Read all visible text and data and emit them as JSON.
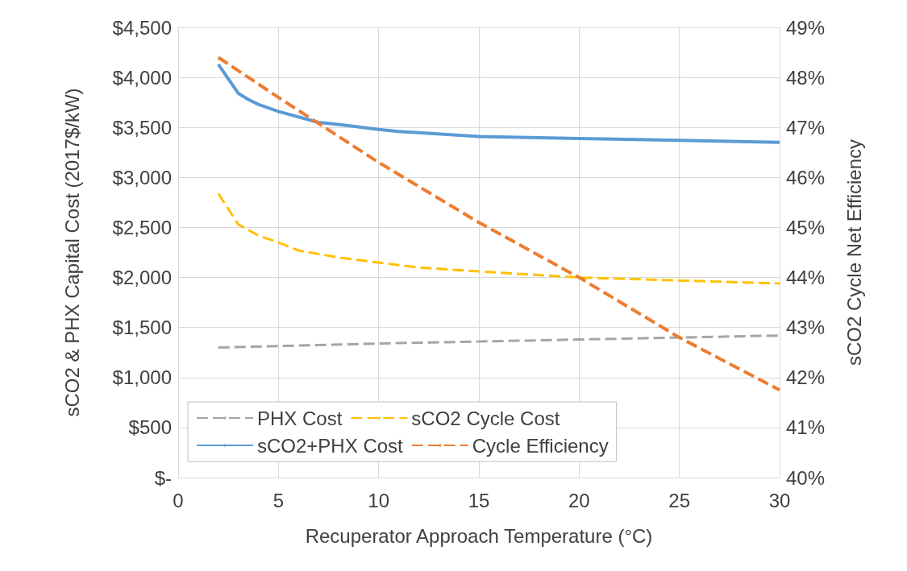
{
  "chart_data": {
    "type": "line",
    "xlabel": "Recuperator Approach Temperature (°C)",
    "ylabel": "sCO2 & PHX Capital Cost (2017$/kW)",
    "y2label": "sCO2 Cycle Net Efficiency",
    "xlim": [
      0,
      30
    ],
    "xticks": [
      0,
      5,
      10,
      15,
      20,
      25,
      30
    ],
    "ylim": [
      0,
      4500
    ],
    "yticks": [
      {
        "value": 0,
        "label": "$-"
      },
      {
        "value": 500,
        "label": "$500"
      },
      {
        "value": 1000,
        "label": "$1,000"
      },
      {
        "value": 1500,
        "label": "$1,500"
      },
      {
        "value": 2000,
        "label": "$2,000"
      },
      {
        "value": 2500,
        "label": "$2,500"
      },
      {
        "value": 3000,
        "label": "$3,000"
      },
      {
        "value": 3500,
        "label": "$3,500"
      },
      {
        "value": 4000,
        "label": "$4,000"
      },
      {
        "value": 4500,
        "label": "$4,500"
      }
    ],
    "y2lim": [
      40,
      49
    ],
    "y2ticks": [
      {
        "value": 40,
        "label": "40%"
      },
      {
        "value": 41,
        "label": "41%"
      },
      {
        "value": 42,
        "label": "42%"
      },
      {
        "value": 43,
        "label": "43%"
      },
      {
        "value": 44,
        "label": "44%"
      },
      {
        "value": 45,
        "label": "45%"
      },
      {
        "value": 46,
        "label": "46%"
      },
      {
        "value": 47,
        "label": "47%"
      },
      {
        "value": 48,
        "label": "48%"
      },
      {
        "value": 49,
        "label": "49%"
      }
    ],
    "grid": true,
    "legend": "bottom left",
    "marker": "none",
    "series": [
      {
        "name": "PHX Cost",
        "color": "#a5a5a5",
        "line_style": "dashed",
        "x": [
          2,
          10,
          20,
          30
        ],
        "values": [
          1300,
          1340,
          1380,
          1420
        ]
      },
      {
        "name": "sCO2 Cycle Cost",
        "color": "#ffc000",
        "line_style": "dashed",
        "x": [
          2,
          3,
          4,
          5,
          6,
          8,
          10,
          12,
          15,
          20,
          25,
          30
        ],
        "values": [
          2840,
          2530,
          2420,
          2350,
          2270,
          2200,
          2150,
          2100,
          2060,
          2000,
          1970,
          1940
        ]
      },
      {
        "name": "sCO2+PHX Cost",
        "color": "#5b9bd5",
        "line_style": "solid",
        "x": [
          2,
          3,
          3.5,
          4,
          5,
          7,
          8,
          10,
          11,
          15,
          20,
          25,
          30
        ],
        "values": [
          4130,
          3840,
          3780,
          3730,
          3660,
          3550,
          3530,
          3480,
          3460,
          3410,
          3390,
          3370,
          3350
        ]
      },
      {
        "name": "Cycle Efficiency",
        "color": "#ed7d31",
        "line_style": "dashed",
        "axis": "y2",
        "x": [
          2,
          5,
          10,
          15,
          20,
          25,
          30
        ],
        "values": [
          48.4,
          47.6,
          46.3,
          45.1,
          44.0,
          42.8,
          41.75
        ]
      }
    ]
  }
}
